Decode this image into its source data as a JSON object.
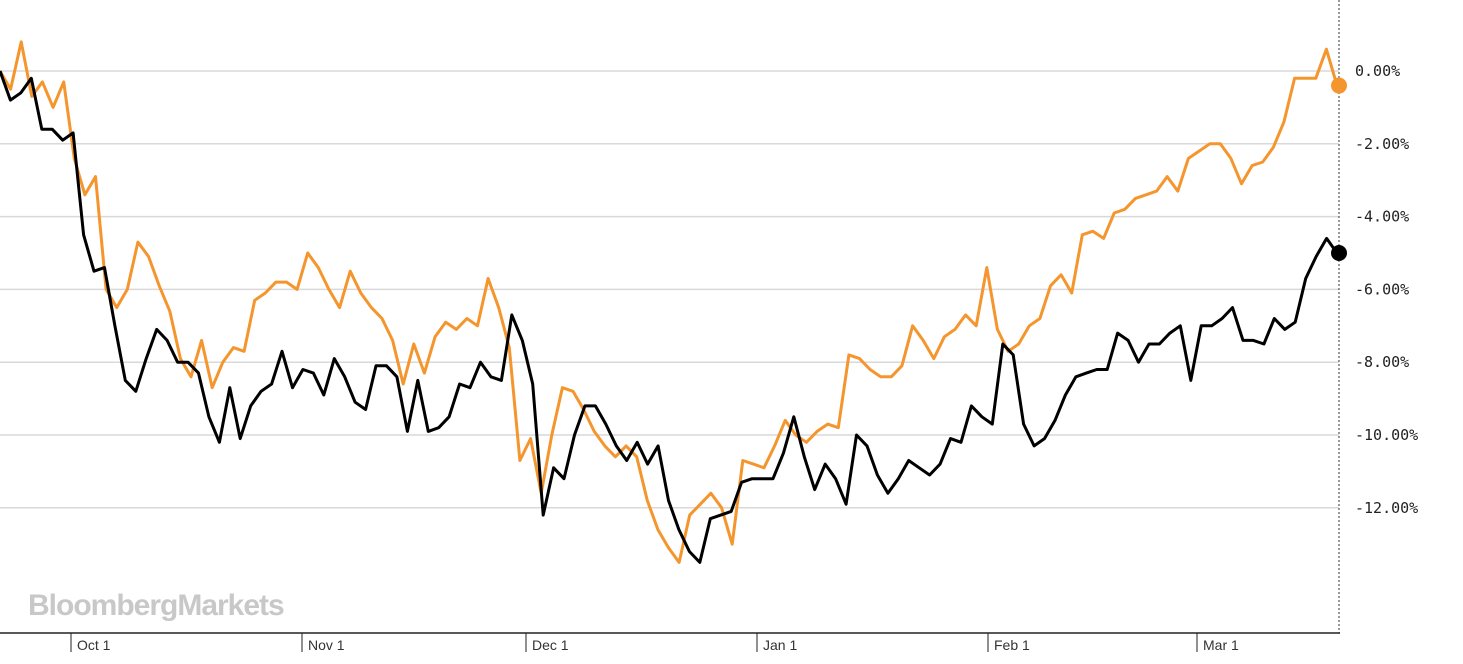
{
  "watermark": "BloombergMarkets",
  "colors": {
    "series_a": "#f5952d",
    "series_b": "#000000",
    "grid": "#d9d9d9",
    "axis": "#222222"
  },
  "chart_data": {
    "type": "line",
    "title": "",
    "xlabel": "",
    "ylabel": "",
    "ylim": [
      -13.5,
      1.0
    ],
    "xlim": [
      "2018-09-29",
      "2019-03-13"
    ],
    "yticks": [
      0,
      -2,
      -4,
      -6,
      -8,
      -10,
      -12
    ],
    "ytick_labels": [
      "0.00%",
      "-2.00%",
      "-4.00%",
      "-6.00%",
      "-8.00%",
      "-10.00%",
      "-12.00%"
    ],
    "xticks": [
      "2018-10-01",
      "2018-11-01",
      "2018-12-01",
      "2019-01-01",
      "2019-02-01",
      "2019-03-01"
    ],
    "xtick_labels": [
      "Oct 1",
      "Nov 1",
      "Dec 1",
      "Jan 1",
      "Feb 1",
      "Mar 1"
    ],
    "grid": true,
    "legend": "none",
    "series": [
      {
        "color": "#f5952d",
        "points": [
          [
            "2018-09-28",
            0.0
          ],
          [
            "2018-10-01",
            -0.5
          ],
          [
            "2018-10-04",
            0.8
          ],
          [
            "2018-10-05",
            -0.7
          ],
          [
            "2018-10-08",
            -0.3
          ],
          [
            "2018-10-09",
            -1.0
          ],
          [
            "2018-10-10",
            -0.3
          ],
          [
            "2018-10-12",
            -2.4
          ],
          [
            "2018-10-15",
            -3.4
          ],
          [
            "2018-10-16",
            -2.9
          ],
          [
            "2018-10-18",
            -6.0
          ],
          [
            "2018-10-19",
            -6.5
          ],
          [
            "2018-10-22",
            -6.0
          ],
          [
            "2018-10-23",
            -4.7
          ],
          [
            "2018-10-24",
            -5.1
          ],
          [
            "2018-10-25",
            -5.9
          ],
          [
            "2018-10-29",
            -6.6
          ],
          [
            "2018-10-30",
            -7.9
          ],
          [
            "2018-10-31",
            -8.4
          ],
          [
            "2018-11-01",
            -7.4
          ],
          [
            "2018-11-02",
            -8.7
          ],
          [
            "2018-11-05",
            -8.0
          ],
          [
            "2018-11-06",
            -7.6
          ],
          [
            "2018-11-07",
            -7.7
          ],
          [
            "2018-11-08",
            -6.3
          ],
          [
            "2018-11-09",
            -6.1
          ],
          [
            "2018-11-12",
            -5.8
          ],
          [
            "2018-11-14",
            -5.8
          ],
          [
            "2018-11-15",
            -6.0
          ],
          [
            "2018-11-16",
            -5.0
          ],
          [
            "2018-11-19",
            -5.4
          ],
          [
            "2018-11-21",
            -6.0
          ],
          [
            "2018-11-23",
            -6.5
          ],
          [
            "2018-11-26",
            -5.5
          ],
          [
            "2018-11-27",
            -6.1
          ],
          [
            "2018-11-29",
            -6.5
          ],
          [
            "2018-11-30",
            -6.8
          ],
          [
            "2018-12-03",
            -7.4
          ],
          [
            "2018-12-04",
            -8.6
          ],
          [
            "2018-12-05",
            -7.5
          ],
          [
            "2018-12-06",
            -8.3
          ],
          [
            "2018-12-10",
            -7.3
          ],
          [
            "2018-12-11",
            -6.9
          ],
          [
            "2018-12-12",
            -7.1
          ],
          [
            "2018-12-13",
            -6.8
          ],
          [
            "2018-12-14",
            -7.0
          ],
          [
            "2018-12-18",
            -5.7
          ],
          [
            "2018-12-19",
            -6.5
          ],
          [
            "2018-12-20",
            -7.6
          ],
          [
            "2018-12-21",
            -10.7
          ],
          [
            "2018-12-24",
            -10.1
          ],
          [
            "2018-12-27",
            -11.6
          ],
          [
            "2018-12-28",
            -10.0
          ],
          [
            "2018-12-31",
            -8.7
          ],
          [
            "2019-01-02",
            -8.8
          ],
          [
            "2019-01-03",
            -9.3
          ],
          [
            "2019-01-07",
            -9.9
          ],
          [
            "2019-01-08",
            -10.3
          ],
          [
            "2019-01-09",
            -10.6
          ],
          [
            "2019-01-10",
            -10.3
          ],
          [
            "2019-01-11",
            -10.6
          ],
          [
            "2019-01-14",
            -11.8
          ],
          [
            "2019-01-16",
            -12.6
          ],
          [
            "2019-01-18",
            -13.1
          ],
          [
            "2019-01-22",
            -13.5
          ],
          [
            "2019-01-23",
            -12.2
          ],
          [
            "2019-01-25",
            -11.9
          ],
          [
            "2019-01-28",
            -11.6
          ],
          [
            "2019-01-30",
            -12.0
          ],
          [
            "2019-01-31",
            -13.0
          ],
          [
            "2019-02-01",
            -10.7
          ],
          [
            "2019-02-04",
            -10.8
          ],
          [
            "2019-02-05",
            -10.9
          ],
          [
            "2019-02-06",
            -10.3
          ],
          [
            "2019-02-07",
            -9.6
          ],
          [
            "2019-02-11",
            -10.0
          ],
          [
            "2019-02-12",
            -10.2
          ],
          [
            "2019-02-13",
            -9.9
          ],
          [
            "2019-02-14",
            -9.7
          ],
          [
            "2019-02-15",
            -9.8
          ],
          [
            "2019-02-19",
            -7.8
          ],
          [
            "2019-02-20",
            -7.9
          ],
          [
            "2019-02-21",
            -8.2
          ],
          [
            "2019-02-22",
            -8.4
          ],
          [
            "2019-02-25",
            -8.4
          ],
          [
            "2019-02-26",
            -8.1
          ],
          [
            "2019-02-27",
            -7.0
          ],
          [
            "2019-02-28",
            -7.4
          ],
          [
            "2019-03-01",
            -7.9
          ],
          [
            "2019-03-04",
            -7.3
          ],
          [
            "2019-03-05",
            -7.1
          ],
          [
            "2019-03-06",
            -6.7
          ],
          [
            "2019-03-07",
            -7.0
          ],
          [
            "2019-03-08",
            -5.4
          ],
          [
            "2019-03-11",
            -7.1
          ],
          [
            "2019-03-12",
            -7.7
          ]
        ]
      },
      {
        "color": "#000000",
        "points": [
          [
            "2018-09-28",
            0.0
          ],
          [
            "2018-10-01",
            -0.8
          ],
          [
            "2018-10-03",
            -0.6
          ],
          [
            "2018-10-04",
            -0.2
          ],
          [
            "2018-10-05",
            -1.6
          ],
          [
            "2018-10-08",
            -1.6
          ],
          [
            "2018-10-09",
            -1.9
          ],
          [
            "2018-10-10",
            -1.7
          ],
          [
            "2018-10-12",
            -4.5
          ],
          [
            "2018-10-15",
            -5.5
          ],
          [
            "2018-10-16",
            -5.4
          ],
          [
            "2018-10-17",
            -7.0
          ],
          [
            "2018-10-18",
            -8.5
          ],
          [
            "2018-10-19",
            -8.8
          ],
          [
            "2018-10-22",
            -7.9
          ],
          [
            "2018-10-23",
            -7.1
          ],
          [
            "2018-10-24",
            -7.4
          ],
          [
            "2018-10-25",
            -8.0
          ],
          [
            "2018-10-26",
            -8.0
          ],
          [
            "2018-10-29",
            -8.3
          ],
          [
            "2018-10-30",
            -9.5
          ],
          [
            "2018-10-31",
            -10.2
          ],
          [
            "2018-11-01",
            -8.7
          ],
          [
            "2018-11-02",
            -10.1
          ],
          [
            "2018-11-05",
            -9.2
          ],
          [
            "2018-11-06",
            -8.8
          ],
          [
            "2018-11-07",
            -8.6
          ],
          [
            "2018-11-08",
            -7.7
          ],
          [
            "2018-11-09",
            -8.7
          ],
          [
            "2018-11-12",
            -8.2
          ],
          [
            "2018-11-14",
            -8.3
          ],
          [
            "2018-11-15",
            -8.9
          ],
          [
            "2018-11-16",
            -7.9
          ],
          [
            "2018-11-19",
            -8.4
          ],
          [
            "2018-11-21",
            -9.1
          ],
          [
            "2018-11-23",
            -9.3
          ],
          [
            "2018-11-26",
            -8.1
          ],
          [
            "2018-11-27",
            -8.1
          ],
          [
            "2018-11-29",
            -8.4
          ],
          [
            "2018-11-30",
            -9.9
          ],
          [
            "2018-12-03",
            -8.5
          ],
          [
            "2018-12-04",
            -9.9
          ],
          [
            "2018-12-05",
            -9.8
          ],
          [
            "2018-12-06",
            -9.5
          ],
          [
            "2018-12-10",
            -8.6
          ],
          [
            "2018-12-11",
            -8.7
          ],
          [
            "2018-12-12",
            -8.0
          ],
          [
            "2018-12-13",
            -8.4
          ],
          [
            "2018-12-14",
            -8.5
          ],
          [
            "2018-12-18",
            -6.7
          ],
          [
            "2018-12-19",
            -7.4
          ],
          [
            "2018-12-20",
            -8.6
          ],
          [
            "2018-12-21",
            -12.2
          ],
          [
            "2018-12-24",
            -10.9
          ],
          [
            "2018-12-27",
            -11.2
          ],
          [
            "2018-12-28",
            -10.0
          ],
          [
            "2018-12-31",
            -9.2
          ],
          [
            "2019-01-02",
            -9.2
          ],
          [
            "2019-01-03",
            -9.7
          ],
          [
            "2019-01-07",
            -10.3
          ],
          [
            "2019-01-08",
            -10.7
          ],
          [
            "2019-01-09",
            -10.2
          ],
          [
            "2019-01-10",
            -10.8
          ],
          [
            "2019-01-11",
            -10.3
          ],
          [
            "2019-01-14",
            -11.8
          ],
          [
            "2019-01-16",
            -12.6
          ],
          [
            "2019-01-18",
            -13.2
          ],
          [
            "2019-01-22",
            -13.5
          ],
          [
            "2019-01-23",
            -12.3
          ],
          [
            "2019-01-25",
            -12.2
          ],
          [
            "2019-01-28",
            -12.1
          ],
          [
            "2019-01-30",
            -11.3
          ],
          [
            "2019-01-31",
            -11.2
          ],
          [
            "2019-02-01",
            -11.2
          ],
          [
            "2019-02-04",
            -11.2
          ],
          [
            "2019-02-05",
            -10.5
          ],
          [
            "2019-02-06",
            -9.5
          ],
          [
            "2019-02-07",
            -10.6
          ],
          [
            "2019-02-11",
            -11.5
          ],
          [
            "2019-02-12",
            -10.8
          ],
          [
            "2019-02-13",
            -11.2
          ],
          [
            "2019-02-14",
            -11.9
          ],
          [
            "2019-02-15",
            -10.0
          ],
          [
            "2019-02-19",
            -10.3
          ],
          [
            "2019-02-20",
            -11.1
          ],
          [
            "2019-02-21",
            -11.6
          ],
          [
            "2019-02-22",
            -11.2
          ],
          [
            "2019-02-25",
            -10.7
          ],
          [
            "2019-02-26",
            -10.9
          ],
          [
            "2019-02-27",
            -11.1
          ],
          [
            "2019-02-28",
            -10.8
          ],
          [
            "2019-03-01",
            -10.1
          ],
          [
            "2019-03-04",
            -10.2
          ],
          [
            "2019-03-05",
            -9.2
          ],
          [
            "2019-03-06",
            -9.5
          ],
          [
            "2019-03-07",
            -9.7
          ],
          [
            "2019-03-08",
            -7.5
          ],
          [
            "2019-03-11",
            -7.8
          ],
          [
            "2019-03-12",
            -9.7
          ]
        ]
      }
    ],
    "tail": {
      "series_a": [
        [
          "2019-03-13",
          -7.5
        ],
        [
          "2019-03-15",
          -7.0
        ],
        [
          "2019-03-18",
          -6.8
        ],
        [
          "2019-03-19",
          -5.9
        ],
        [
          "2019-03-21",
          -5.6
        ],
        [
          "2019-03-22",
          -6.1
        ],
        [
          "2019-03-25",
          -4.5
        ],
        [
          "2019-03-27",
          -4.4
        ],
        [
          "2019-03-28",
          -4.6
        ],
        [
          "2019-03-29",
          -3.9
        ],
        [
          "2019-04-01",
          -3.8
        ],
        [
          "2019-04-02",
          -3.5
        ],
        [
          "2019-04-04",
          -3.4
        ],
        [
          "2019-04-05",
          -3.3
        ],
        [
          "2019-04-08",
          -2.9
        ],
        [
          "2019-04-09",
          -3.3
        ],
        [
          "2019-04-11",
          -2.4
        ],
        [
          "2019-04-15",
          -2.2
        ],
        [
          "2019-04-16",
          -2.0
        ],
        [
          "2019-04-17",
          -2.0
        ],
        [
          "2019-04-18",
          -2.4
        ],
        [
          "2019-04-22",
          -3.1
        ],
        [
          "2019-04-26",
          -2.6
        ],
        [
          "2019-04-29",
          -2.5
        ],
        [
          "2019-04-30",
          -2.1
        ],
        [
          "2019-05-02",
          -1.4
        ],
        [
          "2019-05-03",
          -0.2
        ],
        [
          "2019-05-06",
          -0.2
        ],
        [
          "2019-05-08",
          -0.2
        ],
        [
          "2019-05-10",
          0.6
        ],
        [
          "2019-05-11",
          -0.4
        ]
      ],
      "series_b": [
        [
          "2019-03-13",
          -10.3
        ],
        [
          "2019-03-14",
          -10.1
        ],
        [
          "2019-03-15",
          -9.6
        ],
        [
          "2019-03-18",
          -8.9
        ],
        [
          "2019-03-19",
          -8.4
        ],
        [
          "2019-03-20",
          -8.3
        ],
        [
          "2019-03-21",
          -8.2
        ],
        [
          "2019-03-22",
          -8.2
        ],
        [
          "2019-03-25",
          -7.2
        ],
        [
          "2019-03-28",
          -7.4
        ],
        [
          "2019-03-29",
          -8.0
        ],
        [
          "2019-04-01",
          -7.5
        ],
        [
          "2019-04-02",
          -7.5
        ],
        [
          "2019-04-04",
          -7.2
        ],
        [
          "2019-04-08",
          -7.0
        ],
        [
          "2019-04-11",
          -8.5
        ],
        [
          "2019-04-15",
          -7.0
        ],
        [
          "2019-04-18",
          -7.0
        ],
        [
          "2019-04-19",
          -6.8
        ],
        [
          "2019-04-22",
          -6.5
        ],
        [
          "2019-04-23",
          -7.4
        ],
        [
          "2019-04-25",
          -7.4
        ],
        [
          "2019-04-29",
          -7.5
        ],
        [
          "2019-04-30",
          -6.8
        ],
        [
          "2019-05-01",
          -7.1
        ],
        [
          "2019-05-02",
          -6.9
        ],
        [
          "2019-05-03",
          -5.7
        ],
        [
          "2019-05-07",
          -5.1
        ],
        [
          "2019-05-09",
          -4.6
        ],
        [
          "2019-05-10",
          -5.0
        ]
      ]
    }
  }
}
